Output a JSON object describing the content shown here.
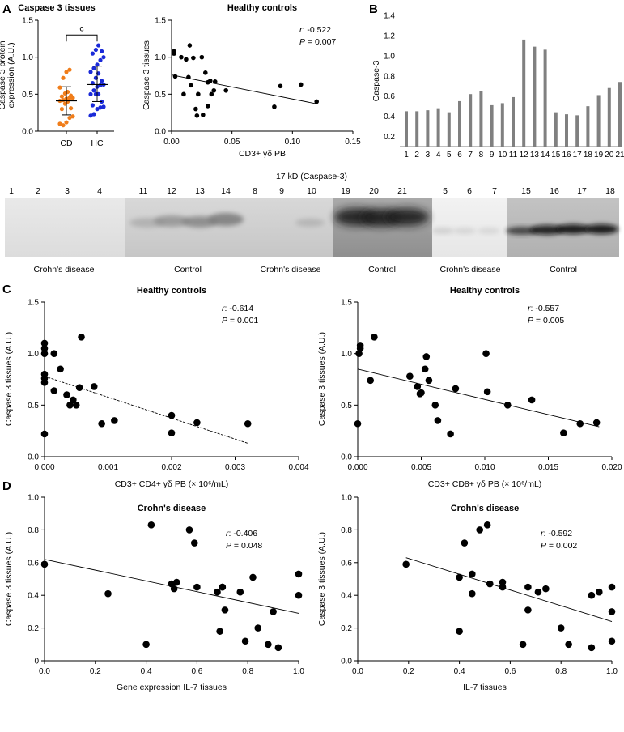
{
  "panels": {
    "A": "A",
    "B": "B",
    "C": "C",
    "D": "D"
  },
  "colors": {
    "cd": "#f07d1a",
    "hc": "#1a2ad8",
    "bar": "#808080",
    "text": "#000000"
  },
  "western_blot": {
    "header": "17 kD (Caspase-3)",
    "lanes": [
      "1",
      "2",
      "3",
      "4",
      "11",
      "12",
      "13",
      "14",
      "8",
      "9",
      "10",
      "19",
      "20",
      "21",
      "5",
      "6",
      "7",
      "15",
      "16",
      "17",
      "18"
    ],
    "groups": [
      "Crohn's disease",
      "Control",
      "Crohn's disease",
      "Control",
      "Crohn's disease",
      "Control"
    ]
  },
  "chart_data": [
    {
      "id": "A-dotplot",
      "type": "scatter",
      "title": "Caspase 3 tissues",
      "ylabel_lines": [
        "Caspase 3 protein",
        "expression (A.U.)"
      ],
      "categories": [
        "CD",
        "HC"
      ],
      "ylim": [
        0,
        1.5
      ],
      "yticks": [
        "0.0",
        "0.5",
        "1.0",
        "1.5"
      ],
      "significance": "c",
      "series": [
        {
          "name": "CD",
          "mean": 0.41,
          "sd_low": 0.22,
          "sd_high": 0.6,
          "values": [
            0.1,
            0.08,
            0.12,
            0.18,
            0.2,
            0.3,
            0.31,
            0.37,
            0.4,
            0.41,
            0.42,
            0.44,
            0.45,
            0.45,
            0.47,
            0.48,
            0.51,
            0.53,
            0.59,
            0.72,
            0.8,
            0.83
          ]
        },
        {
          "name": "HC",
          "mean": 0.63,
          "sd_low": 0.4,
          "sd_high": 0.88,
          "values": [
            0.21,
            0.23,
            0.3,
            0.32,
            0.33,
            0.35,
            0.4,
            0.5,
            0.5,
            0.5,
            0.55,
            0.6,
            0.62,
            0.63,
            0.65,
            0.68,
            0.72,
            0.78,
            0.8,
            0.85,
            0.9,
            0.96,
            1.0,
            1.05,
            1.08,
            1.1,
            1.16
          ]
        }
      ]
    },
    {
      "id": "A-scatter",
      "type": "scatter",
      "title": "Healthy controls",
      "xlabel": "CD3+ γδ PB",
      "ylabel": "Caspase 3 tissues",
      "xlim": [
        0,
        0.15
      ],
      "ylim": [
        0,
        1.5
      ],
      "xticks": [
        "0.00",
        "0.05",
        "0.10",
        "0.15"
      ],
      "yticks": [
        "0.0",
        "0.5",
        "1.0",
        "1.5"
      ],
      "r_label": "r",
      "r": ": -0.522",
      "p_label": "P",
      "p": " = 0.007",
      "fit": [
        [
          0.0,
          0.76
        ],
        [
          0.12,
          0.37
        ]
      ],
      "x": [
        0.002,
        0.002,
        0.003,
        0.008,
        0.01,
        0.012,
        0.014,
        0.015,
        0.016,
        0.018,
        0.02,
        0.021,
        0.022,
        0.025,
        0.026,
        0.028,
        0.03,
        0.03,
        0.032,
        0.033,
        0.035,
        0.036,
        0.045,
        0.085,
        0.09,
        0.107,
        0.12
      ],
      "y": [
        1.05,
        1.08,
        0.74,
        1.0,
        0.5,
        0.97,
        0.73,
        1.16,
        0.62,
        0.99,
        0.3,
        0.21,
        0.5,
        1.0,
        0.22,
        0.79,
        0.66,
        0.34,
        0.68,
        0.5,
        0.55,
        0.67,
        0.55,
        0.33,
        0.61,
        0.63,
        0.4
      ]
    },
    {
      "id": "B-bars",
      "type": "bar",
      "ylabel": "Caspase-3",
      "categories": [
        "1",
        "2",
        "3",
        "4",
        "5",
        "6",
        "7",
        "8",
        "9",
        "10",
        "11",
        "12",
        "13",
        "14",
        "15",
        "16",
        "17",
        "18",
        "19",
        "20",
        "21"
      ],
      "values": [
        0.45,
        0.45,
        0.46,
        0.48,
        0.44,
        0.55,
        0.62,
        0.65,
        0.51,
        0.53,
        0.59,
        1.16,
        1.09,
        1.06,
        0.44,
        0.42,
        0.41,
        0.5,
        0.61,
        0.68,
        0.74
      ],
      "ylim": [
        0.1,
        1.4
      ],
      "yticks": [
        "0.2",
        "0.4",
        "0.6",
        "0.8",
        "1.0",
        "1.2",
        "1.4"
      ]
    },
    {
      "id": "C-left",
      "type": "scatter",
      "title": "Healthy controls",
      "xlabel": "CD3+ CD4+ γδ PB (× 10⁶/mL)",
      "ylabel": "Caspase 3 tissues (A.U.)",
      "xlim": [
        0,
        0.004
      ],
      "ylim": [
        0,
        1.5
      ],
      "xticks": [
        "0.000",
        "0.001",
        "0.002",
        "0.003",
        "0.004"
      ],
      "yticks": [
        "0.0",
        "0.5",
        "1.0",
        "1.5"
      ],
      "r_label": "r",
      "r": ": -0.614",
      "p_label": "P",
      "p": " = 0.001",
      "fit": [
        [
          0.0,
          0.78
        ],
        [
          0.0032,
          0.13
        ]
      ],
      "x": [
        0.0,
        0.0,
        0.0,
        0.0,
        0.0,
        0.0,
        0.0,
        0.00015,
        0.00015,
        0.00025,
        0.00035,
        0.0004,
        0.00045,
        0.0005,
        0.00055,
        0.00058,
        0.00078,
        0.0009,
        0.0011,
        0.002,
        0.002,
        0.0024,
        0.0032
      ],
      "y": [
        1.1,
        1.05,
        1.0,
        0.8,
        0.76,
        0.72,
        0.22,
        1.0,
        0.64,
        0.85,
        0.6,
        0.5,
        0.55,
        0.5,
        0.67,
        1.16,
        0.68,
        0.32,
        0.35,
        0.4,
        0.23,
        0.33,
        0.32
      ]
    },
    {
      "id": "C-right",
      "type": "scatter",
      "title": "Healthy controls",
      "xlabel": "CD3+ CD8+ γδ PB (× 10⁶/mL)",
      "ylabel": "Caspase 3 tissues (A.U.)",
      "xlim": [
        0,
        0.02
      ],
      "ylim": [
        0,
        1.5
      ],
      "xticks": [
        "0.000",
        "0.005",
        "0.010",
        "0.015",
        "0.020"
      ],
      "yticks": [
        "0.0",
        "0.5",
        "1.0",
        "1.5"
      ],
      "r_label": "r",
      "r": ": -0.557",
      "p_label": "P",
      "p": " = 0.005",
      "fit": [
        [
          0.0,
          0.85
        ],
        [
          0.019,
          0.29
        ]
      ],
      "x": [
        0.0,
        0.0001,
        0.0002,
        0.0002,
        0.001,
        0.0013,
        0.0041,
        0.0047,
        0.0049,
        0.005,
        0.0053,
        0.0054,
        0.0056,
        0.0061,
        0.0063,
        0.0073,
        0.0077,
        0.0101,
        0.0102,
        0.0118,
        0.0137,
        0.0162,
        0.0175,
        0.0188
      ],
      "y": [
        0.32,
        1.0,
        1.05,
        1.08,
        0.74,
        1.16,
        0.78,
        0.68,
        0.61,
        0.62,
        0.85,
        0.97,
        0.74,
        0.5,
        0.35,
        0.22,
        0.66,
        1.0,
        0.63,
        0.5,
        0.55,
        0.23,
        0.32,
        0.33
      ]
    },
    {
      "id": "D-left",
      "type": "scatter",
      "title": "Crohn's disease",
      "xlabel": "Gene expression IL-7 tissues",
      "ylabel": "Caspase 3 tissues (A.U.)",
      "xlim": [
        0,
        1.0
      ],
      "ylim": [
        0,
        1.0
      ],
      "xticks": [
        "0.0",
        "0.2",
        "0.4",
        "0.6",
        "0.8",
        "1.0"
      ],
      "yticks": [
        "0",
        "0.2",
        "0.4",
        "0.6",
        "0.8",
        "1.0"
      ],
      "r_label": "r",
      "r": ": -0.406",
      "p_label": "P",
      "p": " = 0.048",
      "fit": [
        [
          0.0,
          0.62
        ],
        [
          1.0,
          0.29
        ]
      ],
      "x": [
        0.0,
        0.25,
        0.4,
        0.42,
        0.5,
        0.51,
        0.52,
        0.57,
        0.59,
        0.6,
        0.68,
        0.69,
        0.7,
        0.7,
        0.71,
        0.77,
        0.79,
        0.82,
        0.84,
        0.88,
        0.9,
        0.92,
        1.0,
        1.0
      ],
      "y": [
        0.59,
        0.41,
        0.1,
        0.83,
        0.47,
        0.44,
        0.48,
        0.8,
        0.72,
        0.45,
        0.42,
        0.18,
        0.45,
        0.45,
        0.31,
        0.42,
        0.12,
        0.51,
        0.2,
        0.1,
        0.3,
        0.08,
        0.53,
        0.4
      ]
    },
    {
      "id": "D-right",
      "type": "scatter",
      "title": "Crohn's disease",
      "xlabel": "IL-7 tissues",
      "ylabel": "Caspase 3 tissues (A.U.)",
      "xlim": [
        0,
        1.0
      ],
      "ylim": [
        0,
        1.0
      ],
      "xticks": [
        "0.0",
        "0.2",
        "0.4",
        "0.6",
        "0.8",
        "1.0"
      ],
      "yticks": [
        "0.0",
        "0.2",
        "0.4",
        "0.6",
        "0.8",
        "1.0"
      ],
      "r_label": "r",
      "r": ": -0.592",
      "p_label": "P",
      "p": " = 0.002",
      "fit": [
        [
          0.19,
          0.63
        ],
        [
          1.0,
          0.24
        ]
      ],
      "x": [
        0.19,
        0.4,
        0.4,
        0.42,
        0.45,
        0.45,
        0.48,
        0.51,
        0.52,
        0.57,
        0.57,
        0.65,
        0.67,
        0.67,
        0.71,
        0.74,
        0.8,
        0.83,
        0.92,
        0.92,
        0.95,
        1.0,
        1.0,
        1.0
      ],
      "y": [
        0.59,
        0.51,
        0.18,
        0.72,
        0.53,
        0.41,
        0.8,
        0.83,
        0.47,
        0.48,
        0.45,
        0.1,
        0.31,
        0.45,
        0.42,
        0.44,
        0.2,
        0.1,
        0.4,
        0.08,
        0.42,
        0.45,
        0.3,
        0.12
      ]
    }
  ]
}
